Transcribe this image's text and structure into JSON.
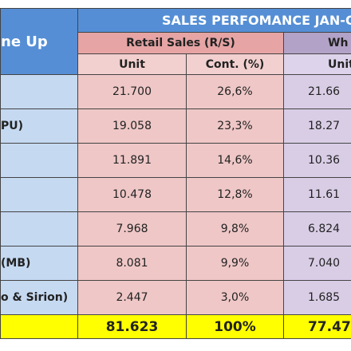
{
  "header": {
    "title": "SALES PERFOMANCE JAN-OC",
    "line_up": "ne Up",
    "retail": "Retail Sales (R/S)",
    "wholesale": "Wh",
    "unit": "Unit",
    "cont": "Cont. (%)",
    "unit_ws": "Unit"
  },
  "rows": [
    {
      "unit": "21.700",
      "cont": "26,6%",
      "ws": "21.66"
    },
    {
      "label": "PU)",
      "unit": "19.058",
      "cont": "23,3%",
      "ws": "18.27"
    },
    {
      "unit": "11.891",
      "cont": "14,6%",
      "ws": "10.36"
    },
    {
      "unit": "10.478",
      "cont": "12,8%",
      "ws": "11.61"
    },
    {
      "unit": "7.968",
      "cont": "9,8%",
      "ws": "6.824"
    },
    {
      "label": "(MB)",
      "unit": "8.081",
      "cont": "9,9%",
      "ws": "7.040"
    },
    {
      "label": "o & Sirion)",
      "unit": "2.447",
      "cont": "3,0%",
      "ws": "1.685"
    }
  ],
  "total": {
    "unit": "81.623",
    "cont": "100%",
    "ws": "77.47"
  }
}
